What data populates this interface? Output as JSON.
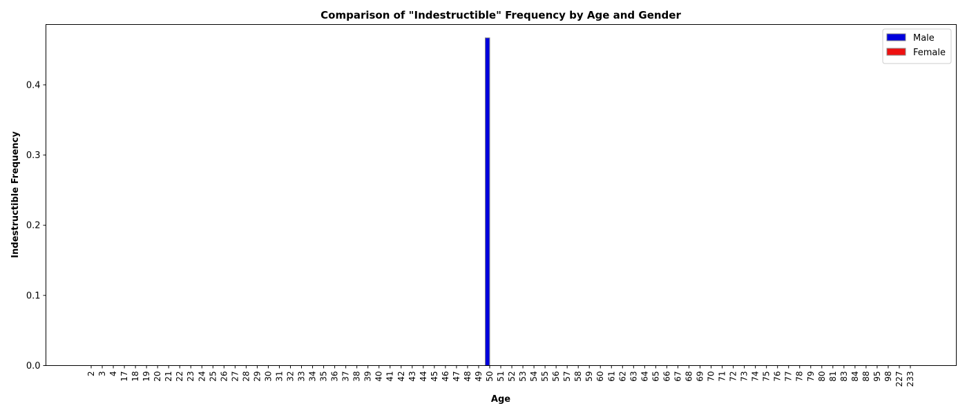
{
  "chart_data": {
    "type": "bar",
    "title": "Comparison of \"Indestructible\" Frequency by Age and Gender",
    "xlabel": "Age",
    "ylabel": "Indestructible Frequency",
    "ylim": [
      0,
      0.486
    ],
    "yticks": [
      "0.0",
      "0.1",
      "0.2",
      "0.3",
      "0.4"
    ],
    "grid": false,
    "legend_position": "top-right",
    "categories": [
      "2",
      "3",
      "4",
      "17",
      "18",
      "19",
      "20",
      "21",
      "22",
      "23",
      "24",
      "25",
      "26",
      "27",
      "28",
      "29",
      "30",
      "31",
      "32",
      "33",
      "34",
      "35",
      "36",
      "37",
      "38",
      "39",
      "40",
      "41",
      "42",
      "43",
      "44",
      "45",
      "46",
      "47",
      "48",
      "49",
      "50",
      "51",
      "52",
      "53",
      "54",
      "55",
      "56",
      "57",
      "58",
      "59",
      "60",
      "61",
      "62",
      "63",
      "64",
      "65",
      "66",
      "67",
      "68",
      "69",
      "70",
      "71",
      "72",
      "73",
      "74",
      "75",
      "76",
      "77",
      "78",
      "79",
      "80",
      "81",
      "83",
      "84",
      "88",
      "95",
      "98",
      "227",
      "233"
    ],
    "series": [
      {
        "name": "Male",
        "color": "#0000dd",
        "values": [
          0,
          0,
          0,
          0,
          0,
          0,
          0,
          0,
          0,
          0,
          0,
          0,
          0,
          0,
          0,
          0,
          0,
          0,
          0,
          0,
          0,
          0,
          0,
          0,
          0,
          0,
          0,
          0,
          0,
          0,
          0,
          0,
          0,
          0,
          0,
          0,
          0.467,
          0,
          0,
          0,
          0,
          0,
          0,
          0,
          0,
          0,
          0,
          0,
          0,
          0,
          0,
          0,
          0,
          0,
          0,
          0,
          0,
          0,
          0,
          0,
          0,
          0,
          0,
          0,
          0,
          0,
          0,
          0,
          0,
          0,
          0,
          0,
          0,
          0,
          0
        ]
      },
      {
        "name": "Female",
        "color": "#ee1111",
        "values": [
          0,
          0,
          0,
          0,
          0,
          0,
          0,
          0,
          0,
          0,
          0,
          0,
          0,
          0,
          0,
          0,
          0,
          0,
          0,
          0,
          0,
          0,
          0,
          0,
          0,
          0,
          0,
          0,
          0,
          0,
          0,
          0,
          0,
          0,
          0,
          0,
          0,
          0,
          0,
          0,
          0,
          0,
          0,
          0,
          0,
          0,
          0,
          0,
          0,
          0,
          0,
          0,
          0,
          0,
          0,
          0,
          0,
          0,
          0,
          0,
          0,
          0,
          0,
          0,
          0,
          0,
          0,
          0,
          0,
          0,
          0,
          0,
          0,
          0,
          0
        ]
      }
    ]
  }
}
